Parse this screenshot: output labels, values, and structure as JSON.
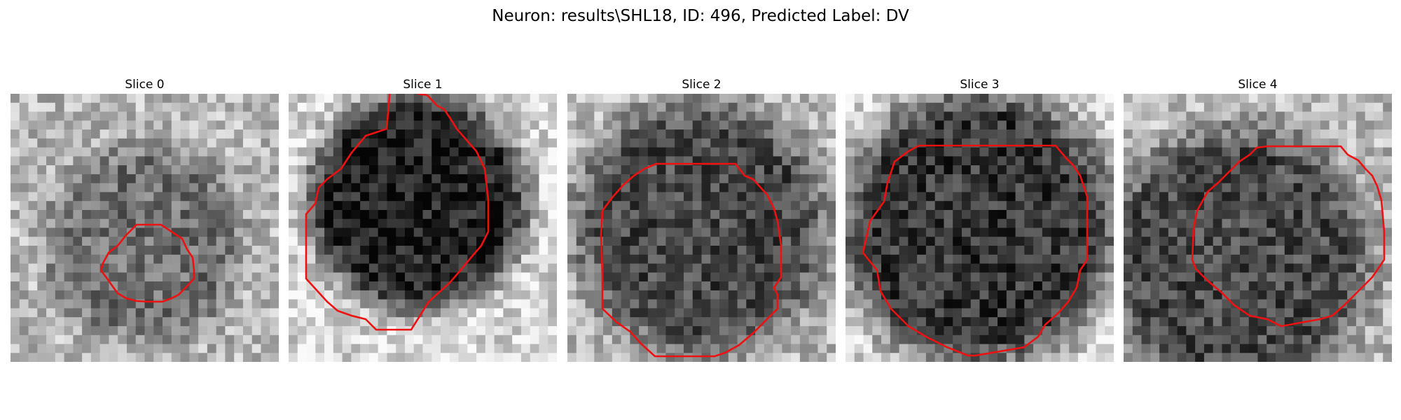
{
  "figure": {
    "title": "Neuron: results\\SHL18, ID: 496, Predicted Label: DV"
  },
  "panels": [
    {
      "title": "Slice 0",
      "cell_darkness": 0.4,
      "cell_radius": 0.3,
      "cell_cx": 0.5,
      "cell_cy": 0.56
    },
    {
      "title": "Slice 1",
      "cell_darkness": 0.85,
      "cell_radius": 0.33,
      "cell_cx": 0.48,
      "cell_cy": 0.4
    },
    {
      "title": "Slice 2",
      "cell_darkness": 0.62,
      "cell_radius": 0.38,
      "cell_cx": 0.5,
      "cell_cy": 0.5
    },
    {
      "title": "Slice 3",
      "cell_darkness": 0.72,
      "cell_radius": 0.42,
      "cell_cx": 0.5,
      "cell_cy": 0.5
    },
    {
      "title": "Slice 4",
      "cell_darkness": 0.62,
      "cell_radius": 0.4,
      "cell_cx": 0.42,
      "cell_cy": 0.62
    }
  ],
  "contour_color": "#ee1111",
  "colormap": "gray",
  "grid_size": 30
}
